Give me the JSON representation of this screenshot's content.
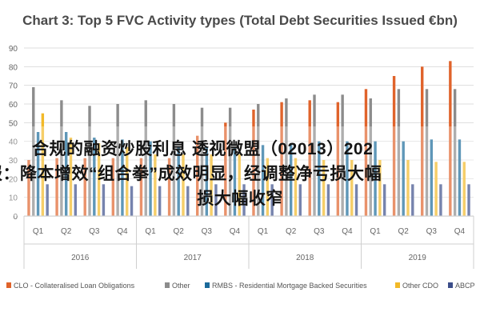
{
  "chart_data": {
    "type": "bar",
    "title": "Chart 3: Top 5 FVC Activity types (Total Debt Securities Issued €bn)",
    "ylim": [
      0,
      90
    ],
    "yticks": [
      0,
      10,
      20,
      30,
      40,
      50,
      60,
      70,
      80,
      90
    ],
    "grid": true,
    "legend_position": "bottom",
    "categories": [
      "Q1",
      "Q2",
      "Q3",
      "Q4",
      "Q1",
      "Q2",
      "Q3",
      "Q4",
      "Q1",
      "Q2",
      "Q3",
      "Q4",
      "Q1",
      "Q2",
      "Q3",
      "Q4"
    ],
    "groups": [
      {
        "label": "2016",
        "span": 4
      },
      {
        "label": "2017",
        "span": 4
      },
      {
        "label": "2018",
        "span": 4
      },
      {
        "label": "2019",
        "span": 4
      }
    ],
    "series": [
      {
        "name": "CLO - Collateralised Loan Obligations",
        "color": "#e0632b",
        "values": [
          30,
          31,
          31,
          31,
          31,
          31,
          43,
          50,
          57,
          61,
          62,
          61,
          68,
          75,
          80,
          83
        ]
      },
      {
        "name": "Other",
        "color": "#8c8c8c",
        "values": [
          69,
          62,
          59,
          60,
          62,
          60,
          58,
          58,
          60,
          63,
          65,
          65,
          63,
          68,
          68,
          68
        ]
      },
      {
        "name": "RMBS - Residential Mortgage Backed Securities",
        "color": "#1b6a9a",
        "values": [
          45,
          45,
          42,
          41,
          40,
          37,
          37,
          37,
          38,
          39,
          40,
          40,
          40,
          40,
          41,
          41
        ]
      },
      {
        "name": "Other CDO",
        "color": "#f2b928",
        "values": [
          55,
          42,
          39,
          37,
          33,
          33,
          33,
          33,
          31,
          31,
          30,
          30,
          30,
          30,
          29,
          29
        ]
      },
      {
        "name": "ABCP",
        "color": "#3c4e8a",
        "values": [
          17,
          17,
          17,
          16,
          16,
          16,
          17,
          17,
          17,
          17,
          17,
          17,
          17,
          17,
          17,
          17
        ]
      }
    ]
  },
  "overlay": {
    "line1": "合规的融资炒股利息 透视微盟（02013）202",
    "line2": "报：降本增效“组合拳”成效明显，经调整净亏损大幅",
    "line3": "损大幅收窄"
  }
}
